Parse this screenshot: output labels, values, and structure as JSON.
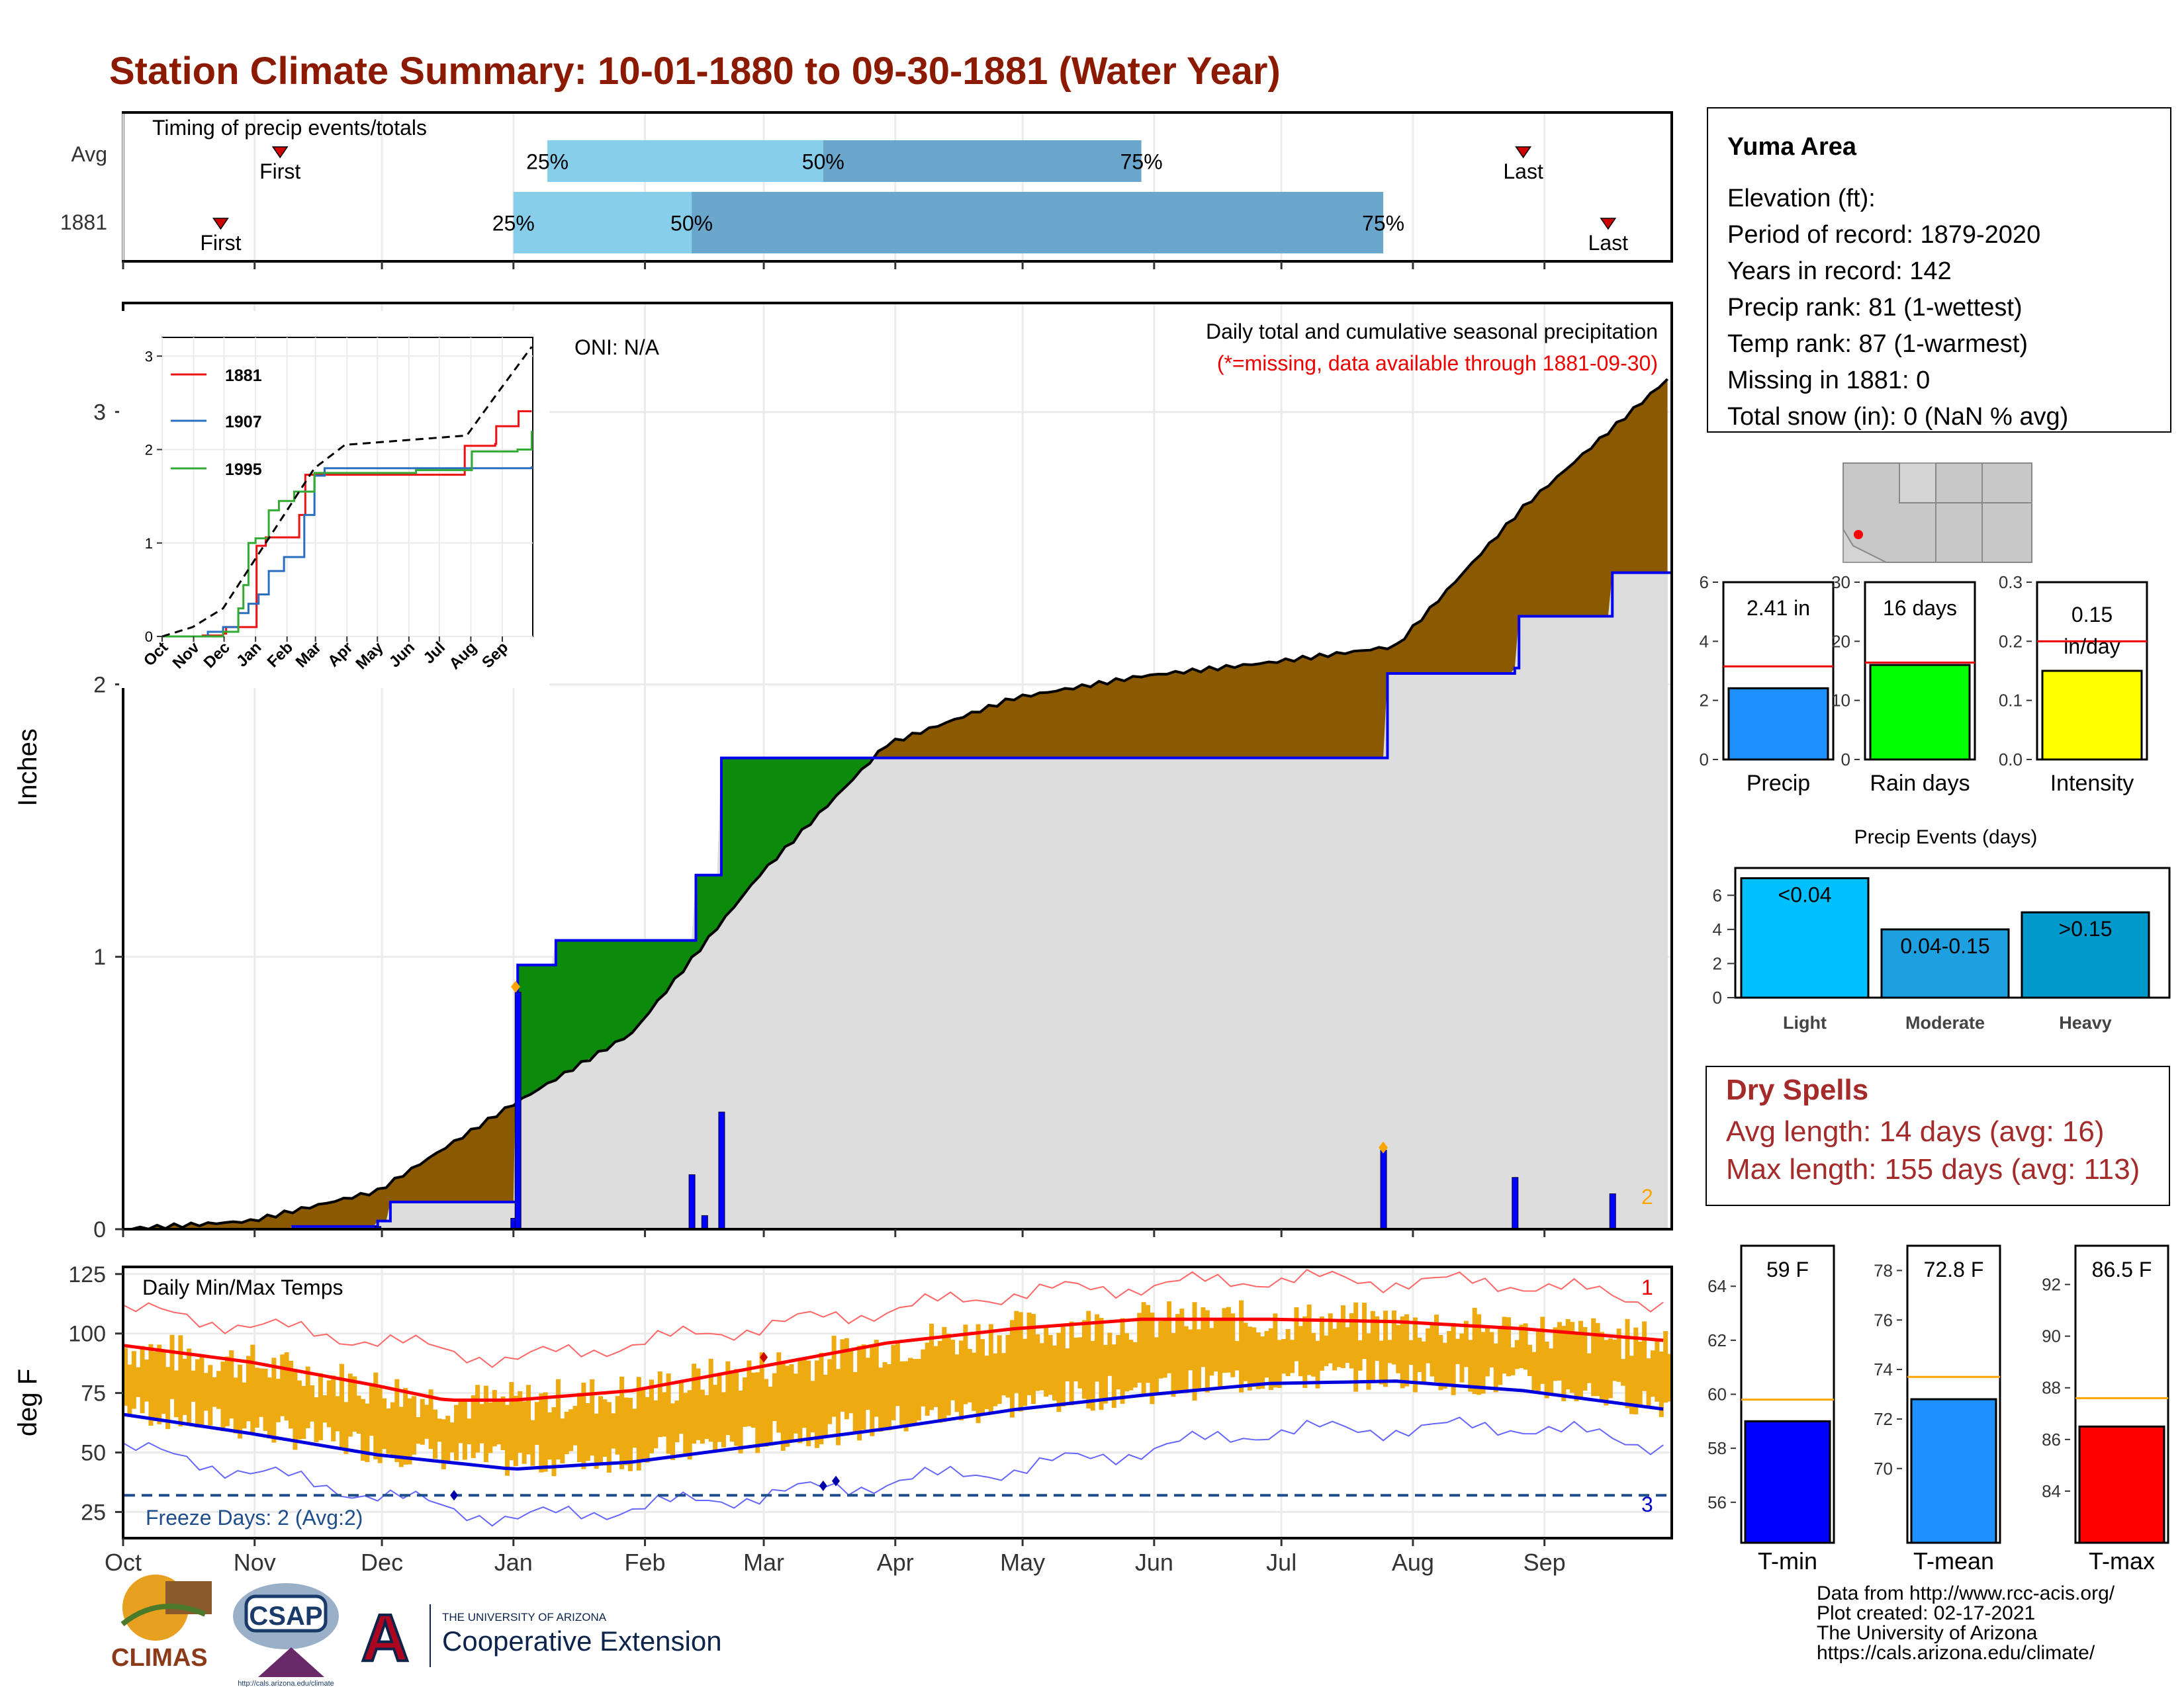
{
  "title": "Station Climate Summary: 10-01-1880 to 09-30-1881 (Water Year)",
  "colors": {
    "title": "#8B1A00",
    "cum_fill": "#8B5A00",
    "green_fill": "#0B8A0B",
    "avg_fill": "#DDDDDD",
    "avg_line": "#0000EE",
    "temp_bar": "#EEAA11",
    "tmax_line": "#FF0000",
    "tmin_line": "#0000DD",
    "dry_red": "#A52A2A",
    "bar_light": "#87CEEB",
    "bar_mid": "#6BA6CD"
  },
  "timing": {
    "label": "Timing of precip events/totals",
    "rows": [
      {
        "row": "Avg",
        "first_label": "First",
        "last_label": "Last",
        "first_day": 37,
        "last_day": 330,
        "p25": 100,
        "p50": 165,
        "p75": 240,
        "p25_label": "25%",
        "p50_label": "50%",
        "p75_label": "75%"
      },
      {
        "row": "1881",
        "first_label": "First",
        "last_label": "Last",
        "first_day": 23,
        "last_day": 350,
        "p25": 92,
        "p50": 134,
        "p75": 297,
        "p25_label": "25%",
        "p50_label": "50%",
        "p75_label": "75%"
      }
    ]
  },
  "precip_panel": {
    "ylabel": "Inches",
    "subtitle": "Daily total and cumulative seasonal precipitation",
    "missing_note": "(*=missing, data available through 1881-09-30)",
    "oni": "ONI: N/A",
    "count_label": "2"
  },
  "inset": {
    "series_1881": "1881",
    "series_1907": "1907",
    "series_1995": "1995",
    "months": [
      "Oct",
      "Nov",
      "Dec",
      "Jan",
      "Feb",
      "Mar",
      "Apr",
      "May",
      "Jun",
      "Jul",
      "Aug",
      "Sep"
    ],
    "yticks": [
      "0",
      "1",
      "2",
      "3"
    ]
  },
  "info": {
    "station": "Yuma Area",
    "elevation": "Elevation (ft):",
    "period": "Period of record: 1879-2020",
    "years": "Years in record: 142",
    "precip_rank": "Precip rank: 81 (1-wettest)",
    "temp_rank": "Temp rank: 87 (1-warmest)",
    "missing": "Missing in 1881: 0",
    "snow": "Total snow (in): 0 (NaN % avg)"
  },
  "mini_bars": {
    "precip": {
      "label": "Precip",
      "value_text": "2.41 in",
      "value": 2.41,
      "avg": 3.15,
      "ymax": 6,
      "yticks": [
        "0",
        "2",
        "4",
        "6"
      ],
      "color": "#1E90FF"
    },
    "raindays": {
      "label": "Rain days",
      "value_text": "16 days",
      "value": 16,
      "avg": 16.4,
      "ymax": 30,
      "yticks": [
        "0",
        "10",
        "20",
        "30"
      ],
      "color": "#00FF00"
    },
    "intensity": {
      "label": "Intensity",
      "value_text_1": "0.15",
      "value_text_2": "in/day",
      "value": 0.15,
      "avg": 0.2,
      "ymax": 0.3,
      "yticks": [
        "0.0",
        "0.1",
        "0.2",
        "0.3"
      ],
      "color": "#FFFF00"
    }
  },
  "events": {
    "title": "Precip Events (days)",
    "yticks": [
      "0",
      "2",
      "4",
      "6"
    ],
    "bars": [
      {
        "cat": "Light",
        "label": "<0.04",
        "value": 7,
        "color": "#00BFFF"
      },
      {
        "cat": "Moderate",
        "label": "0.04-0.15",
        "value": 4,
        "color": "#1E9FDF"
      },
      {
        "cat": "Heavy",
        "label": ">0.15",
        "value": 5,
        "color": "#0099CC"
      }
    ]
  },
  "dry_spells": {
    "title": "Dry Spells",
    "avg": "Avg length: 14 days (avg: 16)",
    "max": "Max length: 155 days (avg: 113)"
  },
  "temp_panel": {
    "ylabel": "deg F",
    "label": "Daily Min/Max Temps",
    "freeze": "Freeze Days: 2 (Avg:2)",
    "count_top": "1",
    "count_bottom": "3",
    "yticks": [
      "25",
      "50",
      "75",
      "100",
      "125"
    ],
    "months": [
      "Oct",
      "Nov",
      "Dec",
      "Jan",
      "Feb",
      "Mar",
      "Apr",
      "May",
      "Jun",
      "Jul",
      "Aug",
      "Sep"
    ]
  },
  "temp_bars": {
    "tmin": {
      "label": "T-min",
      "value_text": "59 F",
      "value": 59,
      "avg": 59.8,
      "ylim": [
        54.5,
        65.5
      ],
      "yticks": [
        "56",
        "58",
        "60",
        "62",
        "64"
      ],
      "color": "#0000FF"
    },
    "tmean": {
      "label": "T-mean",
      "value_text": "72.8 F",
      "value": 72.8,
      "avg": 73.7,
      "ylim": [
        67,
        79
      ],
      "yticks": [
        "70",
        "72",
        "74",
        "76",
        "78"
      ],
      "color": "#1E90FF"
    },
    "tmax": {
      "label": "T-max",
      "value_text": "86.5 F",
      "value": 86.5,
      "avg": 87.6,
      "ylim": [
        82,
        93.5
      ],
      "yticks": [
        "84",
        "86",
        "88",
        "90",
        "92"
      ],
      "color": "#FF0000"
    }
  },
  "precip_axis": {
    "yticks": [
      "0",
      "1",
      "2",
      "3"
    ]
  },
  "credits": {
    "line1": "Data from http://www.rcc-acis.org/",
    "line2": "Plot created: 02-17-2021",
    "line3": "The University of Arizona",
    "line4": "https://cals.arizona.edu/climate/"
  },
  "logos": {
    "climas": "CLIMAS",
    "csap": "CSAP",
    "csap_url": "http://cals.arizona.edu/climate",
    "ua_small": "THE UNIVERSITY OF ARIZONA",
    "ua_big": "Cooperative Extension"
  },
  "chart_data": {
    "type": "area",
    "title": "Station Climate Summary: 10-01-1880 to 09-30-1881 (Water Year)",
    "ylabel": "Inches",
    "ylim": [
      0,
      3.4
    ],
    "x_categories": [
      "Oct",
      "Nov",
      "Dec",
      "Jan",
      "Feb",
      "Mar",
      "Apr",
      "May",
      "Jun",
      "Jul",
      "Aug",
      "Sep"
    ],
    "series": [
      {
        "name": "avg cumulative",
        "points": [
          [
            0,
            0
          ],
          [
            30,
            0.03
          ],
          [
            60,
            0.14
          ],
          [
            90,
            0.44
          ],
          [
            120,
            0.72
          ],
          [
            150,
            1.3
          ],
          [
            180,
            1.78
          ],
          [
            210,
            1.95
          ],
          [
            240,
            2.03
          ],
          [
            270,
            2.08
          ],
          [
            300,
            2.14
          ],
          [
            330,
            2.65
          ],
          [
            364,
            3.12
          ]
        ]
      },
      {
        "name": "1881 cumulative",
        "points": [
          [
            0,
            0
          ],
          [
            40,
            0.01
          ],
          [
            60,
            0.03
          ],
          [
            63,
            0.1
          ],
          [
            92,
            0.1
          ],
          [
            93,
            0.97
          ],
          [
            102,
            1.06
          ],
          [
            134,
            1.06
          ],
          [
            135,
            1.3
          ],
          [
            140,
            1.3
          ],
          [
            141,
            1.73
          ],
          [
            297,
            1.73
          ],
          [
            298,
            2.04
          ],
          [
            328,
            2.06
          ],
          [
            329,
            2.25
          ],
          [
            350,
            2.25
          ],
          [
            351,
            2.41
          ],
          [
            364,
            2.41
          ]
        ]
      },
      {
        "name": "daily precip",
        "points": [
          [
            60,
            0.01
          ],
          [
            92,
            0.04
          ],
          [
            93,
            0.87
          ],
          [
            134,
            0.2
          ],
          [
            137,
            0.05
          ],
          [
            141,
            0.43
          ],
          [
            297,
            0.29
          ],
          [
            328,
            0.19
          ],
          [
            351,
            0.13
          ]
        ]
      }
    ],
    "inset": {
      "ylim": [
        0,
        3.2
      ],
      "series": [
        {
          "name": "1881",
          "points": [
            [
              0,
              0
            ],
            [
              40,
              0.01
            ],
            [
              60,
              0.03
            ],
            [
              63,
              0.1
            ],
            [
              92,
              0.1
            ],
            [
              93,
              0.97
            ],
            [
              102,
              1.06
            ],
            [
              134,
              1.06
            ],
            [
              135,
              1.3
            ],
            [
              140,
              1.3
            ],
            [
              141,
              1.73
            ],
            [
              297,
              1.73
            ],
            [
              298,
              2.04
            ],
            [
              328,
              2.06
            ],
            [
              329,
              2.25
            ],
            [
              350,
              2.25
            ],
            [
              351,
              2.41
            ],
            [
              364,
              2.41
            ]
          ]
        },
        {
          "name": "1907",
          "points": [
            [
              0,
              0
            ],
            [
              45,
              0.05
            ],
            [
              60,
              0.1
            ],
            [
              75,
              0.25
            ],
            [
              85,
              0.35
            ],
            [
              95,
              0.45
            ],
            [
              105,
              0.7
            ],
            [
              120,
              0.85
            ],
            [
              140,
              1.3
            ],
            [
              150,
              1.72
            ],
            [
              160,
              1.8
            ],
            [
              364,
              1.82
            ]
          ]
        },
        {
          "name": "1995",
          "points": [
            [
              0,
              0
            ],
            [
              60,
              0.05
            ],
            [
              75,
              0.3
            ],
            [
              80,
              0.55
            ],
            [
              85,
              1.0
            ],
            [
              92,
              1.05
            ],
            [
              105,
              1.35
            ],
            [
              115,
              1.45
            ],
            [
              130,
              1.55
            ],
            [
              150,
              1.75
            ],
            [
              250,
              1.78
            ],
            [
              300,
              1.78
            ],
            [
              305,
              1.98
            ],
            [
              350,
              2.0
            ],
            [
              364,
              2.2
            ]
          ]
        },
        {
          "name": "avg",
          "points": [
            [
              0,
              0
            ],
            [
              30,
              0.1
            ],
            [
              60,
              0.3
            ],
            [
              90,
              0.8
            ],
            [
              120,
              1.3
            ],
            [
              150,
              1.8
            ],
            [
              180,
              2.05
            ],
            [
              240,
              2.1
            ],
            [
              300,
              2.15
            ],
            [
              330,
              2.6
            ],
            [
              364,
              3.1
            ]
          ]
        }
      ]
    },
    "temps": {
      "ylim": [
        14,
        128
      ],
      "freeze_line": 32,
      "tmax_norm": [
        [
          0,
          95
        ],
        [
          30,
          88
        ],
        [
          60,
          78
        ],
        [
          76,
          72
        ],
        [
          92,
          72
        ],
        [
          120,
          76
        ],
        [
          150,
          86
        ],
        [
          180,
          96
        ],
        [
          210,
          102
        ],
        [
          240,
          106
        ],
        [
          270,
          106
        ],
        [
          300,
          105
        ],
        [
          330,
          102
        ],
        [
          364,
          97
        ]
      ],
      "tmin_norm": [
        [
          0,
          66
        ],
        [
          30,
          58
        ],
        [
          60,
          49
        ],
        [
          92,
          43
        ],
        [
          120,
          46
        ],
        [
          150,
          53
        ],
        [
          180,
          60
        ],
        [
          210,
          68
        ],
        [
          240,
          74
        ],
        [
          270,
          79
        ],
        [
          300,
          80
        ],
        [
          330,
          76
        ],
        [
          364,
          68
        ]
      ],
      "tmax_record": [
        [
          0,
          110
        ],
        [
          60,
          97
        ],
        [
          92,
          89
        ],
        [
          150,
          103
        ],
        [
          210,
          117
        ],
        [
          270,
          123
        ],
        [
          330,
          121
        ],
        [
          364,
          113
        ]
      ],
      "tmin_record": [
        [
          0,
          52
        ],
        [
          60,
          32
        ],
        [
          92,
          22
        ],
        [
          150,
          32
        ],
        [
          210,
          43
        ],
        [
          270,
          59
        ],
        [
          330,
          61
        ],
        [
          364,
          53
        ]
      ]
    }
  }
}
